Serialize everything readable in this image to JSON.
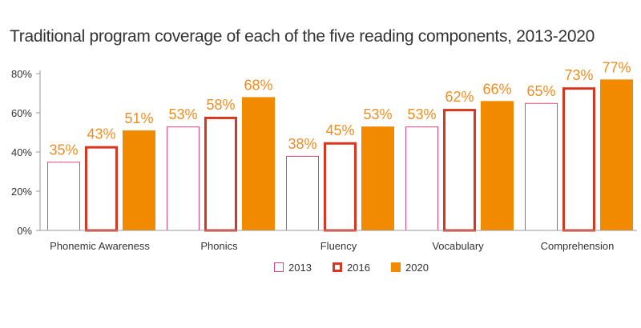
{
  "chart_data": {
    "type": "bar",
    "title": "Traditional program coverage of each of the five reading components, 2013-2020",
    "xlabel": "",
    "ylabel": "",
    "categories": [
      "Phonemic Awareness",
      "Phonics",
      "Fluency",
      "Vocabulary",
      "Comprehension"
    ],
    "series": [
      {
        "name": "2013",
        "values": [
          35,
          53,
          38,
          53,
          65
        ],
        "labels": [
          "35%",
          "53%",
          "38%",
          "53%",
          "65%"
        ],
        "style": "outline-thin",
        "color": "#e0457b"
      },
      {
        "name": "2016",
        "values": [
          43,
          58,
          45,
          62,
          73
        ],
        "labels": [
          "43%",
          "58%",
          "45%",
          "62%",
          "73%"
        ],
        "style": "outline-thick",
        "color": "#d9361f"
      },
      {
        "name": "2020",
        "values": [
          51,
          68,
          53,
          66,
          77
        ],
        "labels": [
          "51%",
          "68%",
          "53%",
          "66%",
          "77%"
        ],
        "style": "filled",
        "color": "#f28a00"
      }
    ],
    "yticks": [
      0,
      20,
      40,
      60,
      80
    ],
    "ytick_labels": [
      "0%",
      "20%",
      "40%",
      "60%",
      "80%"
    ],
    "ylim": [
      0,
      80
    ],
    "grid": false,
    "legend": "bottom-center",
    "label_color": "#f08c1e"
  }
}
